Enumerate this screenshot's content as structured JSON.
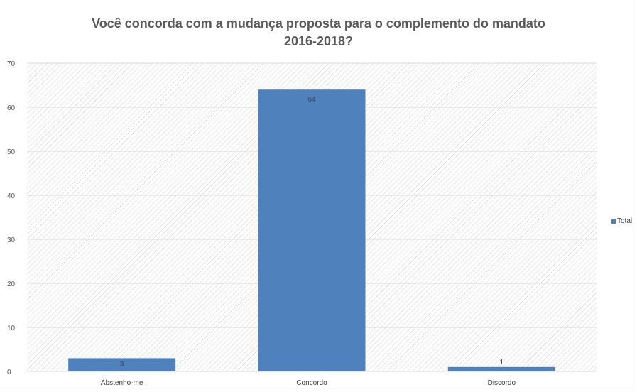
{
  "chart_data": {
    "type": "bar",
    "title": "Você concorda com a mudança proposta para o complemento do mandato 2016-2018?",
    "title_lines": [
      "Você concorda com a mudança proposta para o complemento do mandato",
      "2016-2018?"
    ],
    "categories": [
      "Abstenho-me",
      "Concordo",
      "Discordo"
    ],
    "series": [
      {
        "name": "Total",
        "values": [
          3,
          64,
          1
        ],
        "color": "#4f81bd"
      }
    ],
    "data_labels": [
      "3",
      "64",
      "1"
    ],
    "xlabel": "",
    "ylabel": "",
    "ylim": [
      0,
      70
    ],
    "y_ticks": [
      "0",
      "10",
      "20",
      "30",
      "40",
      "50",
      "60",
      "70"
    ],
    "grid": true,
    "plot_background": "diagonal-hatch",
    "legend": {
      "position": "right",
      "entries": [
        "Total"
      ]
    }
  }
}
